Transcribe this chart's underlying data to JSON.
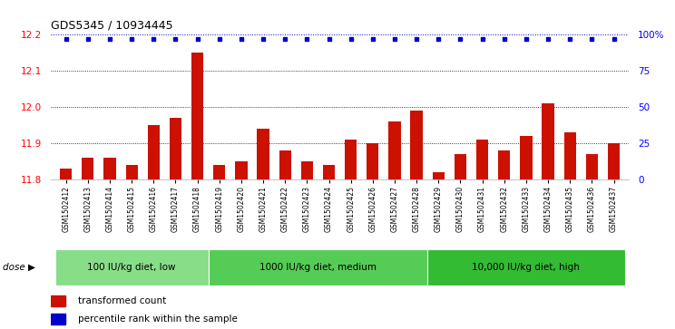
{
  "title": "GDS5345 / 10934445",
  "samples": [
    "GSM1502412",
    "GSM1502413",
    "GSM1502414",
    "GSM1502415",
    "GSM1502416",
    "GSM1502417",
    "GSM1502418",
    "GSM1502419",
    "GSM1502420",
    "GSM1502421",
    "GSM1502422",
    "GSM1502423",
    "GSM1502424",
    "GSM1502425",
    "GSM1502426",
    "GSM1502427",
    "GSM1502428",
    "GSM1502429",
    "GSM1502430",
    "GSM1502431",
    "GSM1502432",
    "GSM1502433",
    "GSM1502434",
    "GSM1502435",
    "GSM1502436",
    "GSM1502437"
  ],
  "bar_values": [
    11.83,
    11.86,
    11.86,
    11.84,
    11.95,
    11.97,
    12.15,
    11.84,
    11.85,
    11.94,
    11.88,
    11.85,
    11.84,
    11.91,
    11.9,
    11.96,
    11.99,
    11.82,
    11.87,
    11.91,
    11.88,
    11.92,
    12.01,
    11.93,
    11.87,
    11.9
  ],
  "percentile_values": [
    97,
    97,
    97,
    97,
    97,
    97,
    97,
    97,
    97,
    97,
    97,
    97,
    97,
    97,
    97,
    97,
    97,
    97,
    97,
    97,
    97,
    97,
    97,
    97,
    97,
    97
  ],
  "groups": [
    {
      "label": "100 IU/kg diet, low",
      "start": 0,
      "end": 7
    },
    {
      "label": "1000 IU/kg diet, medium",
      "start": 7,
      "end": 17
    },
    {
      "label": "10,000 IU/kg diet, high",
      "start": 17,
      "end": 26
    }
  ],
  "group_colors": [
    "#88DD88",
    "#55CC55",
    "#33BB33"
  ],
  "ylim_left": [
    11.8,
    12.2
  ],
  "ylim_right": [
    0,
    100
  ],
  "yticks_left": [
    11.8,
    11.9,
    12.0,
    12.1,
    12.2
  ],
  "yticks_right": [
    0,
    25,
    50,
    75,
    100
  ],
  "ytick_right_labels": [
    "0",
    "25",
    "50",
    "75",
    "100%"
  ],
  "bar_color": "#CC1100",
  "dot_color": "#0000CC",
  "legend_items": [
    {
      "color": "#CC1100",
      "label": "transformed count"
    },
    {
      "color": "#0000CC",
      "label": "percentile rank within the sample"
    }
  ],
  "dose_label": "dose"
}
